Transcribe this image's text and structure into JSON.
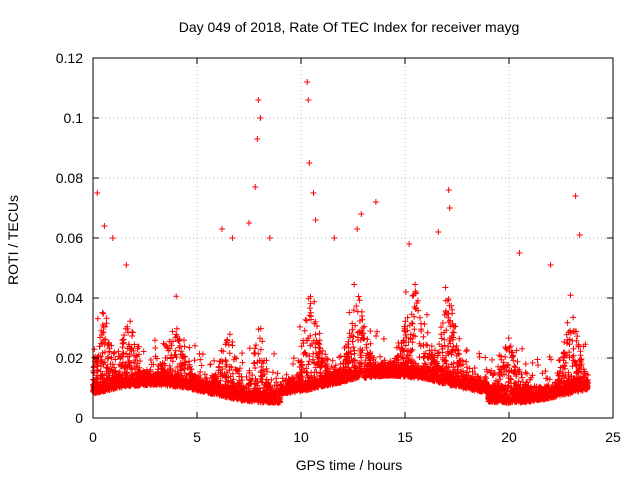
{
  "chart_data": {
    "type": "scatter",
    "title": "Day 049 of 2018, Rate Of TEC Index for receiver mayg",
    "xlabel": "GPS time / hours",
    "ylabel": "ROTI / TECUs",
    "xlim": [
      0,
      25
    ],
    "ylim": [
      0,
      0.12
    ],
    "xticks": [
      0,
      5,
      10,
      15,
      20,
      25
    ],
    "xtick_labels": [
      "0",
      "5",
      "10",
      "15",
      "20",
      "25"
    ],
    "yticks": [
      0,
      0.02,
      0.04,
      0.06,
      0.08,
      0.1,
      0.12
    ],
    "ytick_labels": [
      "0",
      "0.02",
      "0.04",
      "0.06",
      "0.08",
      "0.1",
      "0.12"
    ],
    "grid": true,
    "marker": "+",
    "color": "#ff0000",
    "data_x_range_hours": [
      0,
      23.8
    ],
    "typical_band": [
      0.008,
      0.025
    ],
    "notable_points": [
      {
        "x": 0.2,
        "y": 0.075
      },
      {
        "x": 0.55,
        "y": 0.064
      },
      {
        "x": 0.95,
        "y": 0.06
      },
      {
        "x": 1.6,
        "y": 0.051
      },
      {
        "x": 6.2,
        "y": 0.063
      },
      {
        "x": 6.7,
        "y": 0.06
      },
      {
        "x": 7.5,
        "y": 0.065
      },
      {
        "x": 7.8,
        "y": 0.077
      },
      {
        "x": 7.9,
        "y": 0.093
      },
      {
        "x": 7.95,
        "y": 0.106
      },
      {
        "x": 8.05,
        "y": 0.1
      },
      {
        "x": 8.5,
        "y": 0.06
      },
      {
        "x": 10.3,
        "y": 0.112
      },
      {
        "x": 10.35,
        "y": 0.106
      },
      {
        "x": 10.4,
        "y": 0.085
      },
      {
        "x": 10.6,
        "y": 0.075
      },
      {
        "x": 10.7,
        "y": 0.066
      },
      {
        "x": 11.6,
        "y": 0.06
      },
      {
        "x": 12.7,
        "y": 0.063
      },
      {
        "x": 12.9,
        "y": 0.068
      },
      {
        "x": 13.6,
        "y": 0.072
      },
      {
        "x": 15.2,
        "y": 0.058
      },
      {
        "x": 16.6,
        "y": 0.062
      },
      {
        "x": 17.1,
        "y": 0.076
      },
      {
        "x": 17.15,
        "y": 0.07
      },
      {
        "x": 20.5,
        "y": 0.055
      },
      {
        "x": 22.0,
        "y": 0.051
      },
      {
        "x": 23.2,
        "y": 0.074
      },
      {
        "x": 23.4,
        "y": 0.061
      }
    ],
    "bursts": [
      {
        "center": 0.5,
        "width": 0.7,
        "peak": 0.045
      },
      {
        "center": 1.7,
        "width": 0.6,
        "peak": 0.048
      },
      {
        "center": 4.0,
        "width": 1.0,
        "peak": 0.042
      },
      {
        "center": 6.5,
        "width": 0.8,
        "peak": 0.045
      },
      {
        "center": 8.0,
        "width": 0.6,
        "peak": 0.05
      },
      {
        "center": 10.5,
        "width": 0.8,
        "peak": 0.055
      },
      {
        "center": 12.7,
        "width": 0.8,
        "peak": 0.05
      },
      {
        "center": 15.5,
        "width": 1.2,
        "peak": 0.05
      },
      {
        "center": 17.1,
        "width": 0.8,
        "peak": 0.052
      },
      {
        "center": 20.0,
        "width": 1.0,
        "peak": 0.042
      },
      {
        "center": 23.0,
        "width": 0.8,
        "peak": 0.048
      }
    ]
  }
}
